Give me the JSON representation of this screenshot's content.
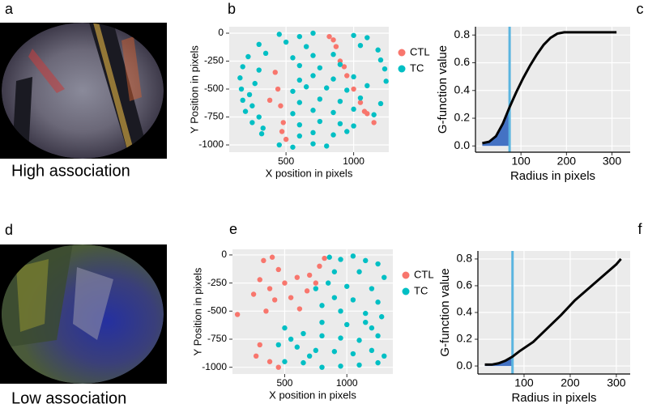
{
  "panels": [
    {
      "label": "a",
      "caption": "High association"
    },
    {
      "label": "d",
      "caption": "Low association"
    }
  ],
  "chart_data": [
    {
      "type": "scatter",
      "panel": "b",
      "x_label": "X position in pixels",
      "y_label": "Y Position in pixels",
      "xlim": [
        80,
        1260
      ],
      "ylim": [
        -1065,
        58
      ],
      "xticks": [
        500,
        1000
      ],
      "yticks": [
        0,
        -250,
        -500,
        -750,
        -1000
      ],
      "grid": true,
      "series": [
        {
          "name": "CTL",
          "color": "#f8766d",
          "x": [
            820,
            870,
            900,
            950,
            1000,
            1050,
            1100,
            1150,
            420,
            440,
            460,
            480,
            500,
            380,
            850,
            1080,
            930,
            470
          ],
          "values": [
            -30,
            -120,
            -250,
            -380,
            -500,
            -620,
            -720,
            -800,
            -350,
            -500,
            -650,
            -800,
            -950,
            -600,
            -60,
            -700,
            -300,
            -880
          ]
        },
        {
          "name": "TC",
          "color": "#00bfc4",
          "x": [
            450,
            600,
            700,
            1000,
            1100,
            300,
            500,
            650,
            1050,
            1180,
            220,
            350,
            550,
            700,
            850,
            1200,
            180,
            300,
            600,
            750,
            900,
            1230,
            160,
            600,
            700,
            850,
            1000,
            1240,
            170,
            550,
            650,
            800,
            950,
            1100,
            180,
            600,
            750,
            900,
            1050,
            1200,
            200,
            550,
            700,
            850,
            1000,
            1150,
            250,
            600,
            750,
            900,
            1000,
            320,
            600,
            700,
            850,
            950,
            450,
            550,
            700,
            800,
            270,
            250,
            230,
            300,
            330
          ],
          "values": [
            -10,
            -30,
            0,
            -20,
            -40,
            -100,
            -80,
            -120,
            -110,
            -150,
            -210,
            -180,
            -220,
            -200,
            -190,
            -240,
            -300,
            -330,
            -290,
            -310,
            -280,
            -320,
            -400,
            -420,
            -380,
            -410,
            -390,
            -430,
            -500,
            -520,
            -480,
            -490,
            -510,
            -470,
            -600,
            -620,
            -590,
            -610,
            -580,
            -630,
            -700,
            -720,
            -690,
            -710,
            -680,
            -730,
            -800,
            -820,
            -790,
            -810,
            -830,
            -900,
            -920,
            -890,
            -910,
            -880,
            -1000,
            -1020,
            -990,
            -1010,
            -450,
            -650,
            -550,
            -750,
            -850
          ]
        }
      ],
      "legend": "right"
    },
    {
      "type": "line",
      "panel": "c",
      "x_label": "Radius in pixels",
      "y_label": "G-function value",
      "xlim": [
        0,
        340
      ],
      "ylim": [
        -0.045,
        0.86
      ],
      "xticks": [
        100,
        200,
        300
      ],
      "yticks": [
        {
          "value": 0,
          "label": "0.0"
        },
        0.2,
        0.4,
        0.6,
        0.8
      ],
      "grid": true,
      "x": [
        15,
        30,
        45,
        60,
        75,
        90,
        105,
        120,
        135,
        150,
        165,
        180,
        195,
        210,
        250,
        310
      ],
      "values": [
        0.02,
        0.03,
        0.07,
        0.16,
        0.28,
        0.39,
        0.49,
        0.58,
        0.66,
        0.73,
        0.78,
        0.81,
        0.82,
        0.82,
        0.82,
        0.82
      ],
      "color": "#000000",
      "shade_color": "#4472c4",
      "vline": {
        "value": 75,
        "color": "#5bb5e0"
      }
    },
    {
      "type": "scatter",
      "panel": "e",
      "x_label": "X position in pixels",
      "y_label": "Y Position in pixels",
      "xlim": [
        80,
        1370
      ],
      "ylim": [
        -1060,
        50
      ],
      "xticks": [
        500,
        1000
      ],
      "yticks": [
        0,
        -250,
        -500,
        -750,
        -1000
      ],
      "grid": true,
      "series": [
        {
          "name": "CTL",
          "color": "#f8766d",
          "x": [
            330,
            400,
            450,
            300,
            380,
            500,
            600,
            700,
            780,
            820,
            250,
            420,
            550,
            680,
            120,
            350,
            300,
            270,
            380,
            450,
            620,
            750
          ],
          "values": [
            -50,
            -20,
            -130,
            -220,
            -300,
            -250,
            -200,
            -180,
            -100,
            -30,
            -350,
            -400,
            -380,
            -320,
            -530,
            -500,
            -800,
            -900,
            -950,
            -1000,
            -480,
            -250
          ]
        },
        {
          "name": "TC",
          "color": "#00bfc4",
          "x": [
            860,
            950,
            1050,
            1150,
            1250,
            900,
            1100,
            1300,
            850,
            1000,
            1200,
            900,
            1050,
            1250,
            950,
            1150,
            1280,
            800,
            1000,
            1200,
            500,
            650,
            800,
            950,
            1100,
            1250,
            450,
            600,
            750,
            900,
            1050,
            1200,
            500,
            650,
            800,
            950,
            1100,
            1250,
            750,
            800,
            700,
            1300,
            550,
            1150
          ],
          "values": [
            -20,
            -40,
            -10,
            -50,
            -80,
            -150,
            -150,
            -200,
            -250,
            -280,
            -300,
            -380,
            -400,
            -420,
            -500,
            -520,
            -550,
            -600,
            -620,
            -650,
            -650,
            -700,
            -720,
            -740,
            -760,
            -720,
            -800,
            -820,
            -850,
            -860,
            -880,
            -850,
            -950,
            -960,
            -1000,
            -990,
            -980,
            -960,
            -300,
            -450,
            -900,
            -900,
            -750,
            -600
          ]
        }
      ],
      "legend": "right"
    },
    {
      "type": "line",
      "panel": "f",
      "x_label": "Radius in pixels",
      "y_label": "G-function value",
      "xlim": [
        0,
        330
      ],
      "ylim": [
        -0.06,
        0.86
      ],
      "xticks": [
        100,
        200,
        300
      ],
      "yticks": [
        {
          "value": 0,
          "label": "0.0"
        },
        0.2,
        0.4,
        0.6,
        0.8
      ],
      "grid": true,
      "x": [
        15,
        30,
        45,
        60,
        75,
        90,
        120,
        150,
        180,
        210,
        240,
        270,
        300,
        310
      ],
      "values": [
        0.01,
        0.01,
        0.02,
        0.04,
        0.07,
        0.11,
        0.18,
        0.28,
        0.38,
        0.49,
        0.58,
        0.67,
        0.76,
        0.8
      ],
      "color": "#000000",
      "shade_color": "#4472c4",
      "vline": {
        "value": 75,
        "color": "#5bb5e0"
      }
    }
  ]
}
